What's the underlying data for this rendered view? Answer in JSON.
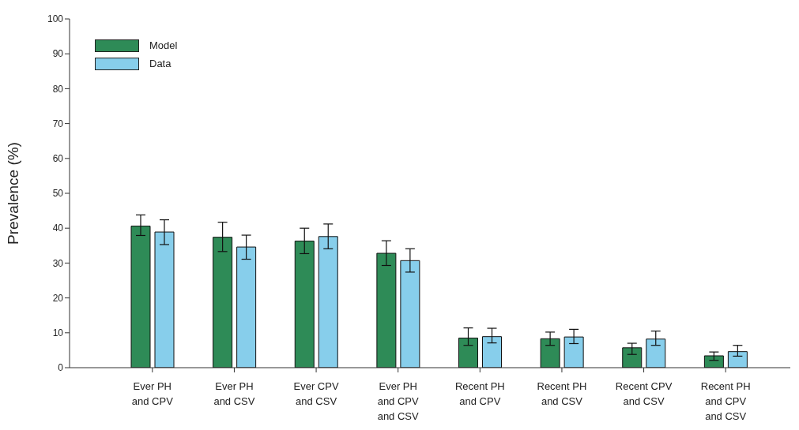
{
  "chart_data": {
    "type": "bar",
    "ylabel": "Prevalence (%)",
    "categories": [
      "Ever PH\nand CPV",
      "Ever PH\nand CSV",
      "Ever CPV\nand CSV",
      "Ever PH\nand CPV\nand CSV",
      "Recent PH\nand CPV",
      "Recent PH\nand CSV",
      "Recent CPV\nand CSV",
      "Recent PH\nand CPV\nand CSV"
    ],
    "series": [
      {
        "name": "Model",
        "color": "#2e8b57",
        "values": [
          40.6,
          37.4,
          36.3,
          32.8,
          8.5,
          8.3,
          5.7,
          3.4
        ],
        "errors": [
          [
            37.9,
            43.8
          ],
          [
            33.3,
            41.7
          ],
          [
            32.7,
            40.0
          ],
          [
            29.3,
            36.4
          ],
          [
            6.4,
            11.4
          ],
          [
            6.4,
            10.2
          ],
          [
            3.8,
            7.0
          ],
          [
            2.1,
            4.5
          ]
        ]
      },
      {
        "name": "Data",
        "color": "#87ceeb",
        "values": [
          38.9,
          34.6,
          37.6,
          30.7,
          8.9,
          8.8,
          8.2,
          4.6
        ],
        "errors": [
          [
            35.3,
            42.4
          ],
          [
            31.1,
            38.0
          ],
          [
            34.1,
            41.2
          ],
          [
            27.4,
            34.1
          ],
          [
            7.1,
            11.3
          ],
          [
            6.9,
            11.0
          ],
          [
            6.4,
            10.5
          ],
          [
            3.3,
            6.4
          ]
        ]
      }
    ],
    "ylim": [
      0,
      100
    ],
    "yticks": [
      0,
      10,
      20,
      30,
      40,
      50,
      60,
      70,
      80,
      90,
      100
    ],
    "grid": false,
    "legend": "top left"
  }
}
